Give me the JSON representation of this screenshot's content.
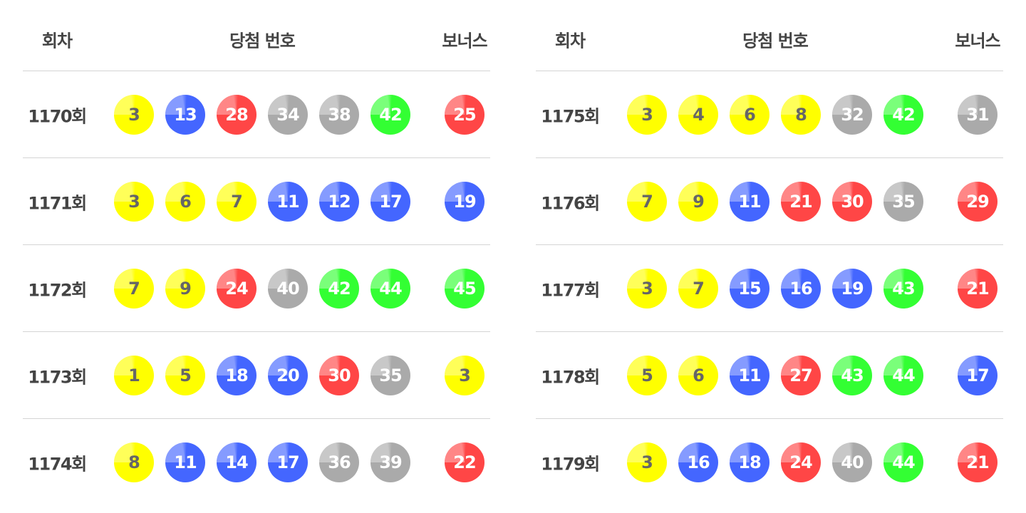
{
  "headers": {
    "round": "회차",
    "numbers": "당첨 번호",
    "bonus": "보너스"
  },
  "colors": {
    "yellow": "#ffff00",
    "blue": "#4466ff",
    "red": "#ff4646",
    "gray": "#aaaaaa",
    "green": "#33ff33"
  },
  "tables": [
    {
      "rows": [
        {
          "round": "1170회",
          "numbers": [
            3,
            13,
            28,
            34,
            38,
            42
          ],
          "bonus": 25
        },
        {
          "round": "1171회",
          "numbers": [
            3,
            6,
            7,
            11,
            12,
            17
          ],
          "bonus": 19
        },
        {
          "round": "1172회",
          "numbers": [
            7,
            9,
            24,
            40,
            42,
            44
          ],
          "bonus": 45
        },
        {
          "round": "1173회",
          "numbers": [
            1,
            5,
            18,
            20,
            30,
            35
          ],
          "bonus": 3
        },
        {
          "round": "1174회",
          "numbers": [
            8,
            11,
            14,
            17,
            36,
            39
          ],
          "bonus": 22
        }
      ]
    },
    {
      "rows": [
        {
          "round": "1175회",
          "numbers": [
            3,
            4,
            6,
            8,
            32,
            42
          ],
          "bonus": 31
        },
        {
          "round": "1176회",
          "numbers": [
            7,
            9,
            11,
            21,
            30,
            35
          ],
          "bonus": 29
        },
        {
          "round": "1177회",
          "numbers": [
            3,
            7,
            15,
            16,
            19,
            43
          ],
          "bonus": 21
        },
        {
          "round": "1178회",
          "numbers": [
            5,
            6,
            11,
            27,
            43,
            44
          ],
          "bonus": 17
        },
        {
          "round": "1179회",
          "numbers": [
            3,
            16,
            18,
            24,
            40,
            44
          ],
          "bonus": 21
        }
      ]
    }
  ]
}
